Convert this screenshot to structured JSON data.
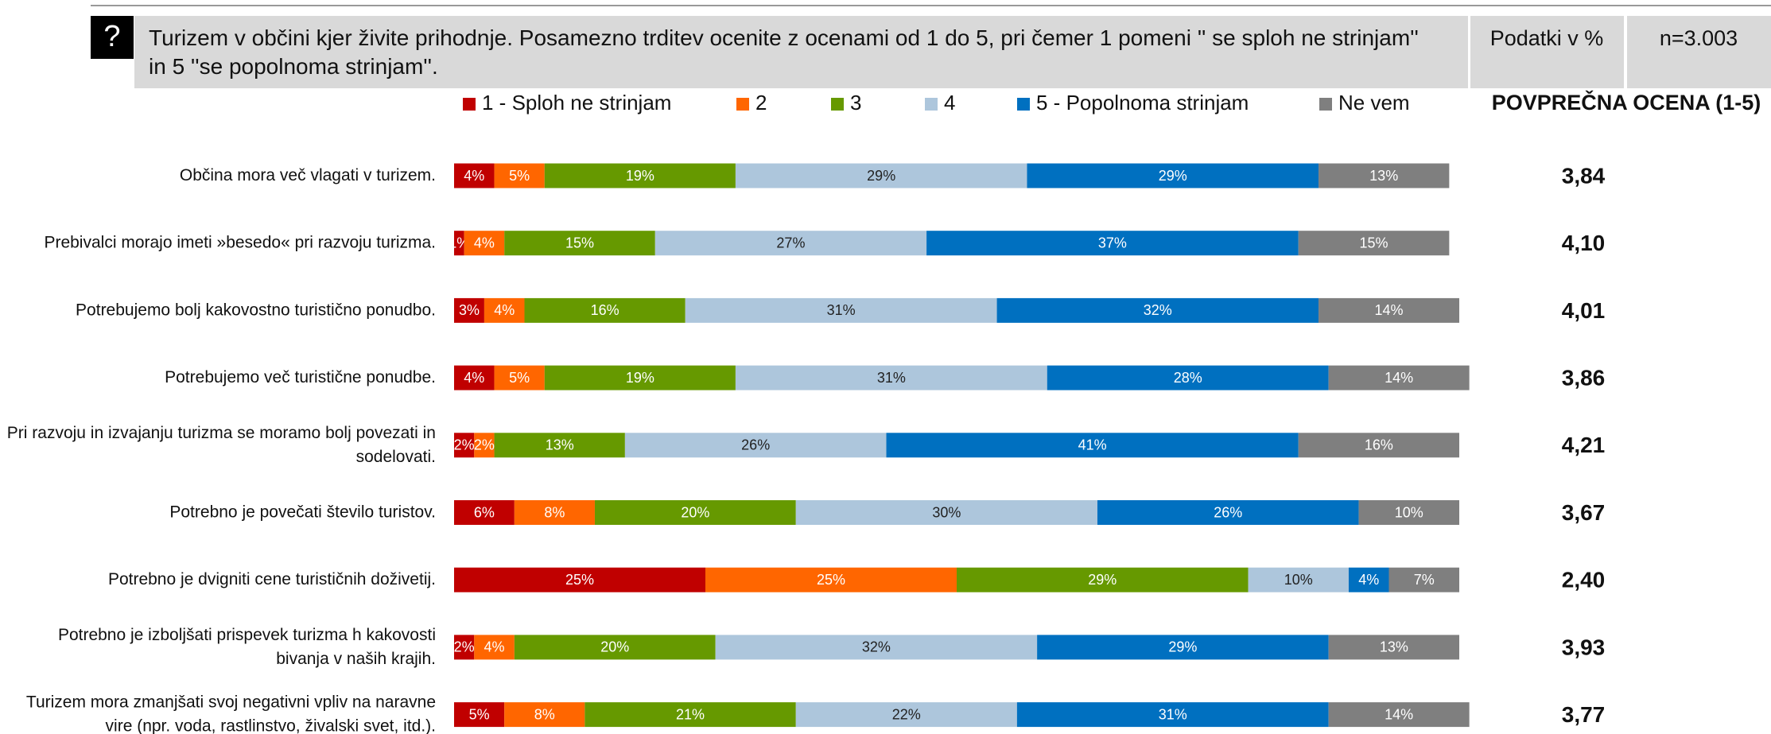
{
  "header": {
    "icon": "?",
    "title": "Turizem v občini kjer živite prihodnje. Posamezno trditev ocenite z ocenami od 1 do 5, pri čemer 1 pomeni '' se sploh ne strinjam'' in 5 ''se popolnoma strinjam''.",
    "unit": "Podatki v %",
    "n": "n=3.003"
  },
  "chart_data": {
    "type": "stacked-bar-horizontal",
    "xlim": [
      0,
      100
    ],
    "categories": [
      "Občina mora več vlagati v turizem.",
      "Prebivalci morajo imeti »besedo« pri razvoju turizma.",
      "Potrebujemo bolj kakovostno turistično ponudbo.",
      "Potrebujemo več turistične ponudbe.",
      "Pri razvoju in izvajanju turizma se moramo bolj povezati in sodelovati.",
      "Potrebno je povečati število turistov.",
      "Potrebno je dvigniti cene turističnih doživetij.",
      "Potrebno je izboljšati prispevek turizma h kakovosti bivanja v naših krajih.",
      "Turizem mora zmanjšati svoj negativni vpliv na naravne vire (npr. voda, rastlinstvo, živalski svet, itd.)."
    ],
    "series": [
      {
        "name": "1 - Sploh ne strinjam",
        "color": "#c00000",
        "values": [
          4,
          1,
          3,
          4,
          2,
          6,
          25,
          2,
          5
        ],
        "value_labels": [
          "4%",
          "1%",
          "3%",
          "4%",
          "2%",
          "6%",
          "25%",
          "2%",
          "5%"
        ]
      },
      {
        "name": "2",
        "color": "#ff6600",
        "values": [
          5,
          4,
          4,
          5,
          2,
          8,
          25,
          4,
          8
        ],
        "value_labels": [
          "5%",
          "4%",
          "4%",
          "5%",
          "2%",
          "8%",
          "25%",
          "4%",
          "8%"
        ]
      },
      {
        "name": "3",
        "color": "#669900",
        "values": [
          19,
          15,
          16,
          19,
          13,
          20,
          29,
          20,
          21
        ],
        "value_labels": [
          "19%",
          "15%",
          "16%",
          "19%",
          "13%",
          "20%",
          "29%",
          "20%",
          "21%"
        ]
      },
      {
        "name": "4",
        "color": "#adc6dc",
        "values": [
          29,
          27,
          31,
          31,
          26,
          30,
          10,
          32,
          22
        ],
        "value_labels": [
          "29%",
          "27%",
          "31%",
          "31%",
          "26%",
          "30%",
          "10%",
          "32%",
          "22%"
        ]
      },
      {
        "name": "5 - Popolnoma strinjam",
        "color": "#0070c0",
        "values": [
          29,
          37,
          32,
          28,
          41,
          26,
          4,
          29,
          31
        ],
        "value_labels": [
          "29%",
          "37%",
          "32%",
          "28%",
          "41%",
          "26%",
          "4%",
          "29%",
          "31%"
        ]
      },
      {
        "name": "Ne vem",
        "color": "#7f7f7f",
        "values": [
          13,
          15,
          14,
          14,
          16,
          10,
          7,
          13,
          14
        ],
        "value_labels": [
          "13%",
          "15%",
          "14%",
          "14%",
          "16%",
          "10%",
          "7%",
          "13%",
          "14%"
        ]
      }
    ],
    "average": {
      "title": "POVPREČNA OCENA (1-5)",
      "values": [
        3.84,
        4.1,
        4.01,
        3.86,
        4.21,
        3.67,
        2.4,
        3.93,
        3.77
      ],
      "value_labels": [
        "3,84",
        "4,10",
        "4,01",
        "3,86",
        "4,21",
        "3,67",
        "2,40",
        "3,93",
        "3,77"
      ]
    }
  }
}
